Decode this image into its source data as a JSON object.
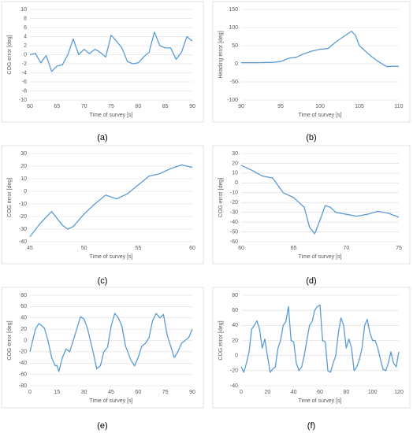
{
  "chart_data": [
    {
      "type": "line",
      "caption": "(a)",
      "xlabel": "Time of survey [s]",
      "ylabel": "COG error [deg]",
      "color": "#5b9bd5",
      "grid": true,
      "x": [
        60,
        61,
        62,
        63,
        64,
        65,
        66,
        67,
        68,
        69,
        70,
        71,
        72,
        73,
        74,
        75,
        76,
        77,
        78,
        79,
        80,
        81,
        82,
        83,
        84,
        85,
        86,
        87,
        88,
        89,
        90
      ],
      "values": [
        0,
        0.3,
        -1.8,
        -0.2,
        -3.7,
        -2.5,
        -2.2,
        0,
        3.5,
        0,
        1.2,
        0.2,
        1.2,
        0.5,
        -0.5,
        4.3,
        3,
        1.5,
        -1.5,
        -2,
        -1.8,
        -0.5,
        0.5,
        5,
        2,
        1.5,
        1.5,
        -1,
        0.5,
        4,
        3
      ],
      "xlim": [
        60,
        90
      ],
      "xticks": [
        60,
        65,
        70,
        75,
        80,
        85,
        90
      ],
      "ylim": [
        -10,
        10
      ],
      "yticks": [
        -10,
        -8,
        -6,
        -4,
        -2,
        0,
        2,
        4,
        6,
        8,
        10
      ]
    },
    {
      "type": "line",
      "caption": "(b)",
      "xlabel": "Time of survey [s]",
      "ylabel": "Heading error [deg]",
      "color": "#5b9bd5",
      "grid": true,
      "x": [
        90,
        92,
        94,
        95,
        96,
        97,
        98,
        99,
        100,
        101,
        102,
        103,
        104,
        104.5,
        105,
        106,
        107,
        108,
        108.5,
        109,
        110
      ],
      "values": [
        3,
        3,
        4,
        6,
        15,
        18,
        28,
        35,
        40,
        42,
        60,
        75,
        90,
        78,
        50,
        30,
        12,
        -2,
        -8,
        -7,
        -7
      ],
      "xlim": [
        90,
        110
      ],
      "xticks": [
        90,
        95,
        100,
        105,
        110
      ],
      "ylim": [
        -100,
        150
      ],
      "yticks": [
        -100,
        -50,
        0,
        50,
        100,
        150
      ]
    },
    {
      "type": "line",
      "caption": "(c)",
      "xlabel": "Time of survey [s]",
      "ylabel": "COG error [deg]",
      "color": "#5b9bd5",
      "grid": true,
      "x": [
        45,
        46,
        47,
        48,
        48.5,
        49,
        50,
        51,
        52,
        53,
        54,
        55,
        56,
        57,
        58,
        59,
        60
      ],
      "values": [
        -36,
        -25,
        -16,
        -27,
        -30,
        -28,
        -18,
        -10,
        -3,
        -6,
        -2,
        5,
        12,
        14,
        18,
        21,
        19
      ],
      "xlim": [
        45,
        60
      ],
      "xticks": [
        45,
        50,
        55,
        60
      ],
      "ylim": [
        -40,
        30
      ],
      "yticks": [
        -40,
        -30,
        -20,
        -10,
        0,
        10,
        20,
        30
      ]
    },
    {
      "type": "line",
      "caption": "(d)",
      "xlabel": "Time of survey [s]",
      "ylabel": "COG error [deg]",
      "color": "#5b9bd5",
      "grid": true,
      "x": [
        60,
        61,
        62,
        63,
        64,
        65,
        66,
        66.5,
        67,
        67.5,
        68,
        68.5,
        69,
        70,
        71,
        72,
        73,
        74,
        75
      ],
      "values": [
        18,
        13,
        7,
        5,
        -10,
        -15,
        -25,
        -45,
        -52,
        -38,
        -23,
        -25,
        -30,
        -32,
        -34,
        -32,
        -29,
        -31,
        -35
      ],
      "xlim": [
        60,
        75
      ],
      "xticks": [
        60,
        65,
        70,
        75
      ],
      "ylim": [
        -60,
        30
      ],
      "yticks": [
        -60,
        -50,
        -40,
        -30,
        -20,
        -10,
        0,
        10,
        20,
        30
      ]
    },
    {
      "type": "line",
      "caption": "(e)",
      "xlabel": "Time of survey [s]",
      "ylabel": "COG error [deg]",
      "color": "#5b9bd5",
      "grid": true,
      "x": [
        0,
        3,
        5,
        8,
        10,
        12,
        14,
        15,
        16,
        18,
        20,
        22,
        25,
        28,
        30,
        32,
        35,
        37,
        39,
        41,
        43,
        45,
        47,
        49,
        51,
        53,
        56,
        58,
        60,
        62,
        64,
        66,
        68,
        70,
        72,
        74,
        76,
        78,
        80,
        82,
        84,
        86,
        88,
        90
      ],
      "values": [
        -20,
        20,
        30,
        22,
        0,
        -30,
        -45,
        -44,
        -55,
        -30,
        -15,
        -20,
        10,
        42,
        38,
        20,
        -20,
        -50,
        -45,
        -20,
        -12,
        25,
        48,
        40,
        25,
        -10,
        -35,
        -45,
        -30,
        -10,
        -5,
        5,
        35,
        48,
        40,
        46,
        10,
        -10,
        -30,
        -20,
        -5,
        0,
        5,
        20
      ],
      "xlim": [
        0,
        90
      ],
      "xticks": [
        0,
        15,
        30,
        45,
        60,
        75,
        90
      ],
      "ylim": [
        -80,
        80
      ],
      "yticks": [
        -80,
        -60,
        -40,
        -20,
        0,
        20,
        40,
        60,
        80
      ]
    },
    {
      "type": "line",
      "caption": "(f)",
      "xlabel": "Time of survey [s]",
      "ylabel": "COG error [deg]",
      "color": "#5b9bd5",
      "grid": true,
      "x": [
        0,
        2,
        4,
        6,
        8,
        10,
        12,
        14,
        16,
        18,
        20,
        22,
        24,
        26,
        28,
        30,
        32,
        34,
        36,
        38,
        40,
        42,
        44,
        46,
        48,
        50,
        52,
        54,
        56,
        58,
        60,
        62,
        64,
        66,
        68,
        70,
        72,
        74,
        76,
        78,
        80,
        82,
        84,
        86,
        88,
        90,
        92,
        94,
        96,
        98,
        100,
        102,
        104,
        106,
        108,
        110,
        112,
        114,
        116,
        118,
        120
      ],
      "values": [
        -15,
        -22,
        -10,
        5,
        35,
        40,
        46,
        35,
        10,
        22,
        0,
        -22,
        -18,
        -15,
        10,
        20,
        40,
        45,
        65,
        20,
        18,
        -10,
        -20,
        -15,
        0,
        20,
        40,
        45,
        60,
        65,
        67,
        20,
        18,
        -20,
        -22,
        -10,
        0,
        30,
        50,
        40,
        10,
        22,
        10,
        -20,
        -15,
        -5,
        10,
        40,
        48,
        30,
        20,
        20,
        10,
        -5,
        -18,
        -20,
        -10,
        5,
        -10,
        -15,
        5
      ],
      "xlim": [
        0,
        120
      ],
      "xticks": [
        0,
        20,
        40,
        60,
        80,
        100,
        120
      ],
      "ylim": [
        -40,
        80
      ],
      "yticks": [
        -40,
        -20,
        0,
        20,
        40,
        60,
        80
      ]
    }
  ]
}
